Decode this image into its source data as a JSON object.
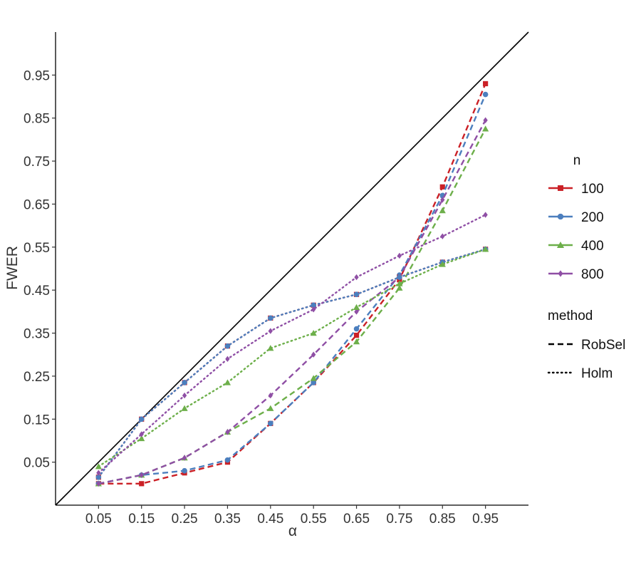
{
  "chart_data": {
    "type": "line",
    "xlabel": "α",
    "ylabel": "FWER",
    "xlim": [
      -0.05,
      1.05
    ],
    "ylim": [
      -0.05,
      1.05
    ],
    "x_ticks": [
      0.05,
      0.15,
      0.25,
      0.35,
      0.45,
      0.55,
      0.65,
      0.75,
      0.85,
      0.95
    ],
    "x_tick_labels": [
      "0.05",
      "0.15",
      "0.25",
      "0.35",
      "0.45",
      "0.55",
      "0.65",
      "0.75",
      "0.85",
      "0.95"
    ],
    "y_ticks": [
      0.05,
      0.15,
      0.25,
      0.35,
      0.45,
      0.55,
      0.65,
      0.75,
      0.85,
      0.95
    ],
    "y_tick_labels": [
      "0.05",
      "0.15",
      "0.25",
      "0.35",
      "0.45",
      "0.55",
      "0.65",
      "0.75",
      "0.85",
      "0.95"
    ],
    "grid": false,
    "reference_line": "y = x",
    "legend_placement": "right",
    "x": [
      0.05,
      0.15,
      0.25,
      0.35,
      0.45,
      0.55,
      0.65,
      0.75,
      0.85,
      0.95
    ],
    "legend": {
      "n_title": "n",
      "n_entries": [
        {
          "label": "100",
          "color": "#CB2026",
          "marker": "square"
        },
        {
          "label": "200",
          "color": "#4C7FBE",
          "marker": "circle"
        },
        {
          "label": "400",
          "color": "#6DAF4A",
          "marker": "triangle"
        },
        {
          "label": "800",
          "color": "#8F4FA5",
          "marker": "diamond"
        }
      ],
      "method_title": "method",
      "method_entries": [
        {
          "label": "RobSel",
          "dash": "dashed"
        },
        {
          "label": "Holm",
          "dash": "dotted"
        }
      ]
    },
    "series": [
      {
        "n": "100",
        "method": "RobSel",
        "color": "#CB2026",
        "marker": "square",
        "dash": "dashed",
        "values": [
          0.0,
          0.0,
          0.025,
          0.05,
          0.14,
          0.235,
          0.345,
          0.475,
          0.69,
          0.93
        ]
      },
      {
        "n": "200",
        "method": "RobSel",
        "color": "#4C7FBE",
        "marker": "circle",
        "dash": "dashed",
        "values": [
          0.0,
          0.02,
          0.03,
          0.055,
          0.14,
          0.235,
          0.36,
          0.485,
          0.67,
          0.905
        ]
      },
      {
        "n": "400",
        "method": "RobSel",
        "color": "#6DAF4A",
        "marker": "triangle",
        "dash": "dashed",
        "values": [
          0.0,
          0.02,
          0.06,
          0.12,
          0.175,
          0.245,
          0.33,
          0.455,
          0.635,
          0.825
        ]
      },
      {
        "n": "800",
        "method": "RobSel",
        "color": "#8F4FA5",
        "marker": "diamond",
        "dash": "dashed",
        "values": [
          0.0,
          0.02,
          0.06,
          0.12,
          0.205,
          0.3,
          0.4,
          0.48,
          0.66,
          0.845
        ]
      },
      {
        "n": "100",
        "method": "Holm",
        "color": "#CB2026",
        "marker": "square",
        "dash": "dotted",
        "values": [
          0.015,
          0.15,
          0.235,
          0.32,
          0.385,
          0.415,
          0.44,
          0.48,
          0.515,
          0.545
        ]
      },
      {
        "n": "200",
        "method": "Holm",
        "color": "#4C7FBE",
        "marker": "circle",
        "dash": "dotted",
        "values": [
          0.015,
          0.15,
          0.235,
          0.32,
          0.385,
          0.415,
          0.44,
          0.48,
          0.515,
          0.545
        ]
      },
      {
        "n": "400",
        "method": "Holm",
        "color": "#6DAF4A",
        "marker": "triangle",
        "dash": "dotted",
        "values": [
          0.04,
          0.105,
          0.175,
          0.235,
          0.315,
          0.35,
          0.41,
          0.465,
          0.51,
          0.545
        ]
      },
      {
        "n": "800",
        "method": "Holm",
        "color": "#8F4FA5",
        "marker": "diamond",
        "dash": "dotted",
        "values": [
          0.025,
          0.115,
          0.205,
          0.29,
          0.355,
          0.405,
          0.48,
          0.53,
          0.575,
          0.625
        ]
      }
    ]
  }
}
